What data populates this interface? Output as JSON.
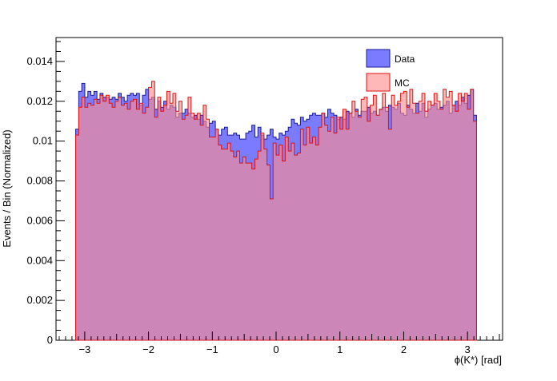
{
  "chart_data": {
    "type": "histogram",
    "title": "",
    "xlabel": "ϕ(K*) [rad]",
    "ylabel": "Events / Bin (Normalized)",
    "xlim": [
      -3.45,
      3.55
    ],
    "ylim": [
      0,
      0.0152
    ],
    "x_ticks": [
      -3,
      -2,
      -1,
      0,
      1,
      2,
      3
    ],
    "x_tick_labels": [
      "−3",
      "−2",
      "−1",
      "0",
      "1",
      "2",
      "3"
    ],
    "y_ticks": [
      0.002,
      0.004,
      0.006,
      0.008,
      0.01,
      0.012,
      0.014
    ],
    "y_tick_labels": [
      "0.002",
      "0.004",
      "0.006",
      "0.008",
      "0.01",
      "0.012",
      "0.014"
    ],
    "y_zero_label": "0",
    "bin_range": [
      -3.1416,
      3.1416
    ],
    "legend_position": "top-right",
    "series": [
      {
        "name": "Data",
        "fill": "#7b7bff",
        "stroke": "#1a1a99",
        "values": [
          0.0106,
          0.0125,
          0.0129,
          0.0122,
          0.0125,
          0.0123,
          0.0125,
          0.0121,
          0.0124,
          0.0122,
          0.0122,
          0.0121,
          0.0122,
          0.0121,
          0.0124,
          0.0122,
          0.012,
          0.0123,
          0.0124,
          0.0123,
          0.0124,
          0.0118,
          0.0123,
          0.0126,
          0.0121,
          0.0122,
          0.0116,
          0.012,
          0.0117,
          0.012,
          0.0116,
          0.0118,
          0.0117,
          0.0112,
          0.0114,
          0.0114,
          0.0116,
          0.0114,
          0.0112,
          0.0113,
          0.0111,
          0.0113,
          0.011,
          0.0107,
          0.0109,
          0.011,
          0.0106,
          0.0103,
          0.0106,
          0.0107,
          0.0103,
          0.0103,
          0.0104,
          0.0103,
          0.0101,
          0.0101,
          0.0104,
          0.0105,
          0.0108,
          0.0102,
          0.0107,
          0.0103,
          0.0101,
          0.0103,
          0.0106,
          0.0102,
          0.0101,
          0.0104,
          0.0103,
          0.0105,
          0.0107,
          0.0111,
          0.0109,
          0.0108,
          0.0112,
          0.011,
          0.0111,
          0.0113,
          0.0114,
          0.0113,
          0.0113,
          0.0114,
          0.0112,
          0.0116,
          0.0114,
          0.0113,
          0.0111,
          0.0112,
          0.0111,
          0.0115,
          0.0114,
          0.0112,
          0.0116,
          0.0113,
          0.0115,
          0.0115,
          0.0117,
          0.0114,
          0.0115,
          0.0113,
          0.0116,
          0.0117,
          0.0115,
          0.0118,
          0.0117,
          0.0116,
          0.0119,
          0.0114,
          0.0113,
          0.0118,
          0.0116,
          0.0114,
          0.0119,
          0.0115,
          0.0119,
          0.0112,
          0.0116,
          0.0118,
          0.0119,
          0.0116,
          0.0117,
          0.0118,
          0.012,
          0.0114,
          0.0118,
          0.012,
          0.0118,
          0.0122,
          0.0119,
          0.0123,
          0.0126,
          0.0113
        ]
      },
      {
        "name": "MC",
        "fill": "rgba(255,140,140,0.62)",
        "stroke": "#dd1111",
        "values": [
          0.0103,
          0.0117,
          0.0122,
          0.0117,
          0.0119,
          0.0118,
          0.0121,
          0.0119,
          0.0123,
          0.012,
          0.0123,
          0.0119,
          0.0117,
          0.012,
          0.0122,
          0.0118,
          0.0119,
          0.0116,
          0.012,
          0.0121,
          0.0116,
          0.0119,
          0.0114,
          0.0117,
          0.0127,
          0.013,
          0.0112,
          0.0122,
          0.0115,
          0.0118,
          0.0125,
          0.0119,
          0.0124,
          0.0115,
          0.012,
          0.0111,
          0.0113,
          0.0122,
          0.0114,
          0.0111,
          0.0114,
          0.0108,
          0.0118,
          0.0111,
          0.0102,
          0.0102,
          0.0106,
          0.0098,
          0.0096,
          0.0096,
          0.0099,
          0.0095,
          0.0092,
          0.0095,
          0.0089,
          0.0092,
          0.0089,
          0.0089,
          0.0086,
          0.0091,
          0.0095,
          0.0104,
          0.0096,
          0.0088,
          0.0071,
          0.0099,
          0.0093,
          0.0098,
          0.009,
          0.0102,
          0.0095,
          0.0099,
          0.0093,
          0.0094,
          0.0106,
          0.0098,
          0.0107,
          0.0099,
          0.0102,
          0.0098,
          0.0107,
          0.0114,
          0.0108,
          0.0105,
          0.0112,
          0.0104,
          0.0112,
          0.0106,
          0.0116,
          0.0106,
          0.0114,
          0.012,
          0.0115,
          0.0112,
          0.0121,
          0.0122,
          0.011,
          0.0118,
          0.0123,
          0.0113,
          0.0116,
          0.0124,
          0.0117,
          0.0106,
          0.0123,
          0.0118,
          0.012,
          0.0124,
          0.0125,
          0.0117,
          0.0126,
          0.0119,
          0.0114,
          0.012,
          0.0124,
          0.0115,
          0.012,
          0.0118,
          0.0124,
          0.012,
          0.0116,
          0.0126,
          0.0122,
          0.0125,
          0.0118,
          0.0115,
          0.0124,
          0.012,
          0.0124,
          0.0116,
          0.0126,
          0.011
        ]
      }
    ]
  }
}
